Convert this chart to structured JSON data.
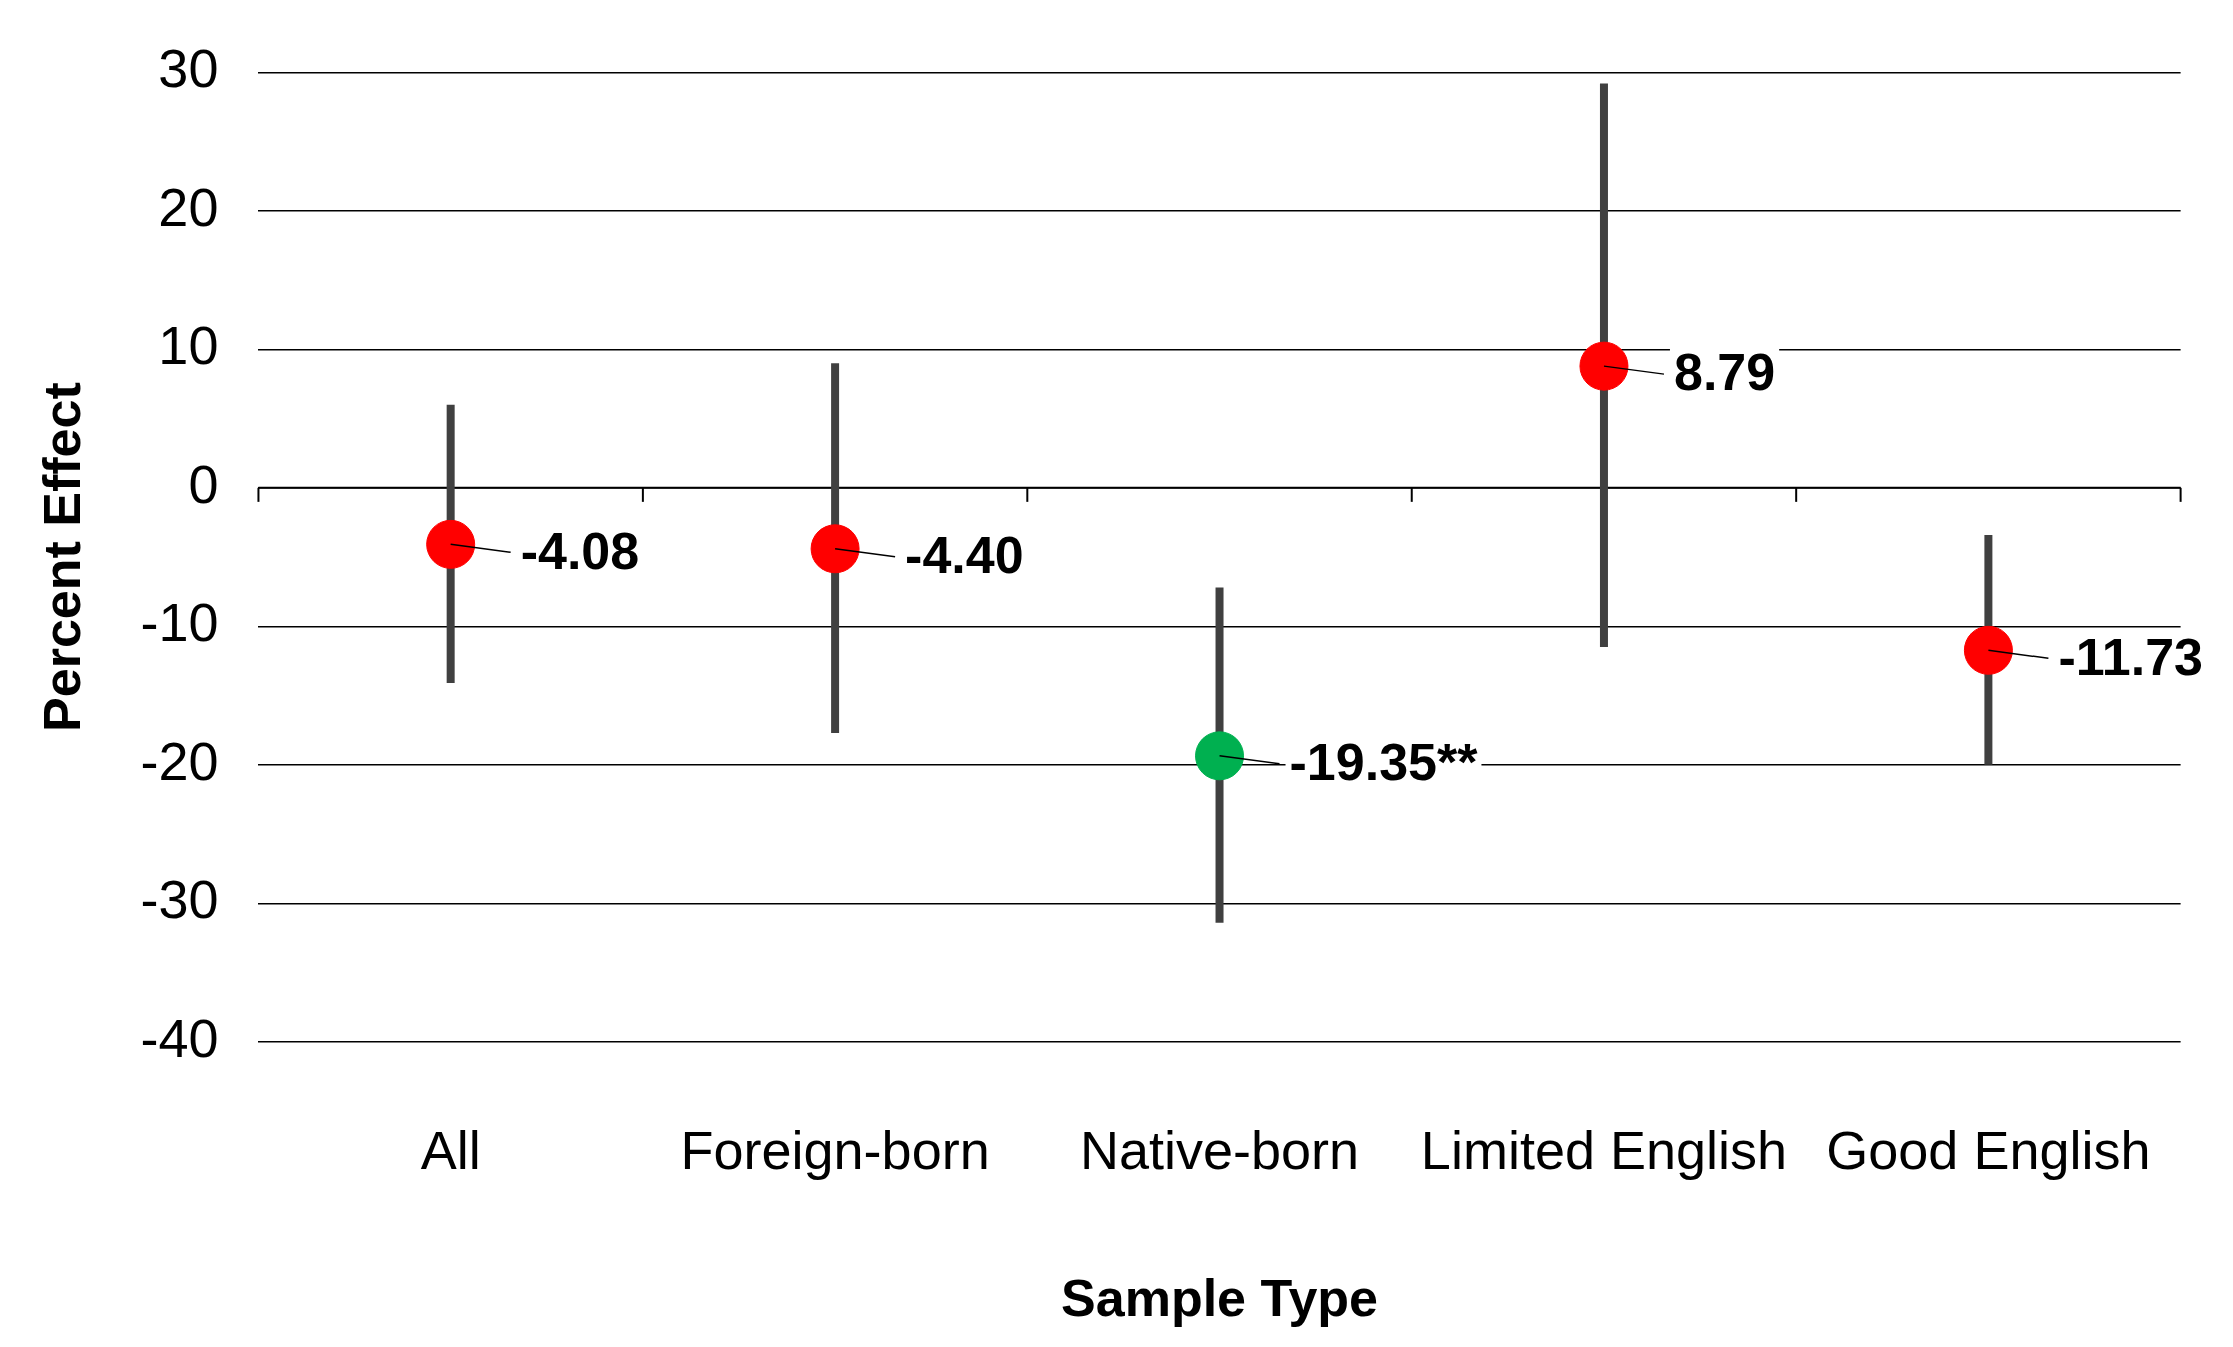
{
  "chart_data": {
    "type": "scatter",
    "xlabel": "Sample Type",
    "ylabel": "Percent Effect",
    "categories": [
      "All",
      "Foreign-born",
      "Native-born",
      "Limited English",
      "Good English"
    ],
    "values": [
      -4.08,
      -4.4,
      -19.35,
      8.79,
      -11.73
    ],
    "colors": [
      "#ff0000",
      "#ff0000",
      "#00b050",
      "#ff0000",
      "#ff0000"
    ],
    "errors": [
      [
        -14.1,
        6.0
      ],
      [
        -17.7,
        9.0
      ],
      [
        -31.4,
        -7.2
      ],
      [
        -11.5,
        29.2
      ],
      [
        -20.0,
        -3.4
      ]
    ],
    "value_labels": [
      "-4.08",
      "-4.40",
      "-19.35**",
      "8.79",
      "-11.73"
    ],
    "ylim": [
      -40,
      30
    ],
    "yticks": [
      -40,
      -30,
      -20,
      -10,
      0,
      10,
      20,
      30
    ],
    "grid": "y",
    "marker": "circle",
    "legend": false
  }
}
